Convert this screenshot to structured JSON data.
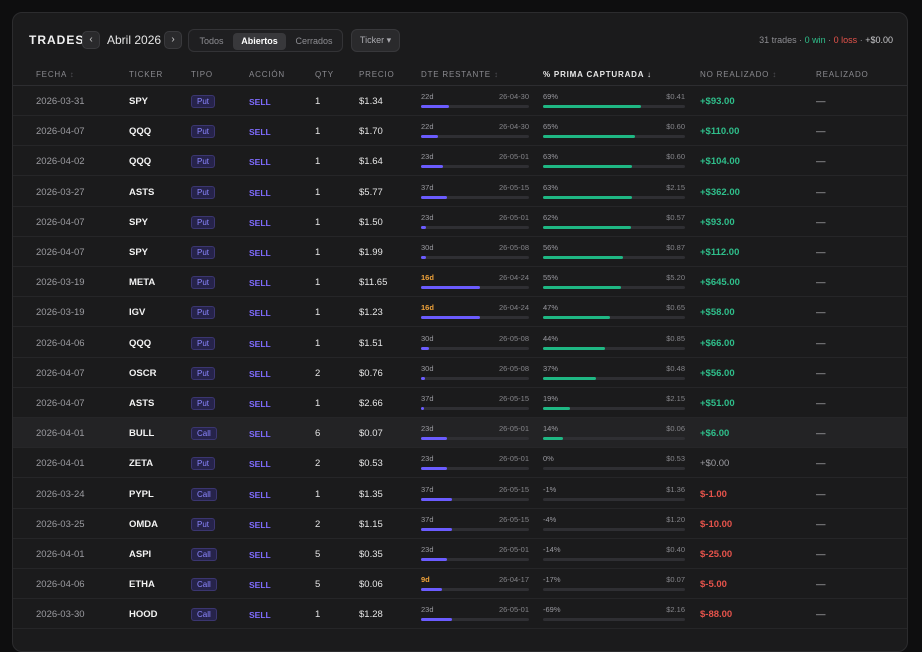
{
  "toolbar": {
    "title": "TRADES",
    "prev_icon": "chevron-left",
    "next_icon": "chevron-right",
    "month": "Abril 2026",
    "filters": [
      "Todos",
      "Abiertos",
      "Cerrados"
    ],
    "active_filter": "Abiertos",
    "ticker_filter": "Ticker ▾",
    "summary": {
      "count": "31 trades",
      "win": "0 win",
      "loss": "0 loss",
      "net": "+$0.00",
      "sep": "·"
    }
  },
  "columns": {
    "fecha": "FECHA",
    "ticker": "TICKER",
    "tipo": "TIPO",
    "accion": "ACCIÓN",
    "qty": "QTY",
    "precio": "PRECIO",
    "dte": "DTE RESTANTE",
    "prima": "% PRIMA CAPTURADA ↓",
    "no_realizado": "NO REALIZADO",
    "realizado": "REALIZADO",
    "sort_caret": "↕"
  },
  "colors": {
    "accent": "#6b5cff",
    "positive": "#2fbf8b",
    "negative": "#e5534b",
    "warning": "#f0a33a"
  },
  "rows": [
    {
      "fecha": "2026-03-31",
      "ticker": "SPY",
      "tipo": "Put",
      "accion": "SELL",
      "qty": "1",
      "precio": "$1.34",
      "dte": "22d",
      "dte_fill": 0.26,
      "expiry": "26-04-30",
      "pct": "69%",
      "pct_value": 0.69,
      "prima": "$0.41",
      "no_realizado": "+$93.00",
      "realizado": "—",
      "state": "pos"
    },
    {
      "fecha": "2026-04-07",
      "ticker": "QQQ",
      "tipo": "Put",
      "accion": "SELL",
      "qty": "1",
      "precio": "$1.70",
      "dte": "22d",
      "dte_fill": 0.16,
      "expiry": "26-04-30",
      "pct": "65%",
      "pct_value": 0.65,
      "prima": "$0.60",
      "no_realizado": "+$110.00",
      "realizado": "—",
      "state": "pos"
    },
    {
      "fecha": "2026-04-02",
      "ticker": "QQQ",
      "tipo": "Put",
      "accion": "SELL",
      "qty": "1",
      "precio": "$1.64",
      "dte": "23d",
      "dte_fill": 0.2,
      "expiry": "26-05-01",
      "pct": "63%",
      "pct_value": 0.63,
      "prima": "$0.60",
      "no_realizado": "+$104.00",
      "realizado": "—",
      "state": "pos"
    },
    {
      "fecha": "2026-03-27",
      "ticker": "ASTS",
      "tipo": "Put",
      "accion": "SELL",
      "qty": "1",
      "precio": "$5.77",
      "dte": "37d",
      "dte_fill": 0.24,
      "expiry": "26-05-15",
      "pct": "63%",
      "pct_value": 0.63,
      "prima": "$2.15",
      "no_realizado": "+$362.00",
      "realizado": "—",
      "state": "pos"
    },
    {
      "fecha": "2026-04-07",
      "ticker": "SPY",
      "tipo": "Put",
      "accion": "SELL",
      "qty": "1",
      "precio": "$1.50",
      "dte": "23d",
      "dte_fill": 0.05,
      "expiry": "26-05-01",
      "pct": "62%",
      "pct_value": 0.62,
      "prima": "$0.57",
      "no_realizado": "+$93.00",
      "realizado": "—",
      "state": "pos"
    },
    {
      "fecha": "2026-04-07",
      "ticker": "SPY",
      "tipo": "Put",
      "accion": "SELL",
      "qty": "1",
      "precio": "$1.99",
      "dte": "30d",
      "dte_fill": 0.05,
      "expiry": "26-05-08",
      "pct": "56%",
      "pct_value": 0.56,
      "prima": "$0.87",
      "no_realizado": "+$112.00",
      "realizado": "—",
      "state": "pos"
    },
    {
      "fecha": "2026-03-19",
      "ticker": "META",
      "tipo": "Put",
      "accion": "SELL",
      "qty": "1",
      "precio": "$11.65",
      "dte": "16d",
      "dte_fill": 0.55,
      "expiry": "26-04-24",
      "pct": "55%",
      "pct_value": 0.55,
      "prima": "$5.20",
      "no_realizado": "+$645.00",
      "realizado": "—",
      "state": "pos",
      "dte_warn": true
    },
    {
      "fecha": "2026-03-19",
      "ticker": "IGV",
      "tipo": "Put",
      "accion": "SELL",
      "qty": "1",
      "precio": "$1.23",
      "dte": "16d",
      "dte_fill": 0.55,
      "expiry": "26-04-24",
      "pct": "47%",
      "pct_value": 0.47,
      "prima": "$0.65",
      "no_realizado": "+$58.00",
      "realizado": "—",
      "state": "pos",
      "dte_warn": true
    },
    {
      "fecha": "2026-04-06",
      "ticker": "QQQ",
      "tipo": "Put",
      "accion": "SELL",
      "qty": "1",
      "precio": "$1.51",
      "dte": "30d",
      "dte_fill": 0.07,
      "expiry": "26-05-08",
      "pct": "44%",
      "pct_value": 0.44,
      "prima": "$0.85",
      "no_realizado": "+$66.00",
      "realizado": "—",
      "state": "pos"
    },
    {
      "fecha": "2026-04-07",
      "ticker": "OSCR",
      "tipo": "Put",
      "accion": "SELL",
      "qty": "2",
      "precio": "$0.76",
      "dte": "30d",
      "dte_fill": 0.04,
      "expiry": "26-05-08",
      "pct": "37%",
      "pct_value": 0.37,
      "prima": "$0.48",
      "no_realizado": "+$56.00",
      "realizado": "—",
      "state": "pos"
    },
    {
      "fecha": "2026-04-07",
      "ticker": "ASTS",
      "tipo": "Put",
      "accion": "SELL",
      "qty": "1",
      "precio": "$2.66",
      "dte": "37d",
      "dte_fill": 0.03,
      "expiry": "26-05-15",
      "pct": "19%",
      "pct_value": 0.19,
      "prima": "$2.15",
      "no_realizado": "+$51.00",
      "realizado": "—",
      "state": "pos"
    },
    {
      "fecha": "2026-04-01",
      "ticker": "BULL",
      "tipo": "Call",
      "accion": "SELL",
      "qty": "6",
      "precio": "$0.07",
      "dte": "23d",
      "dte_fill": 0.24,
      "expiry": "26-05-01",
      "pct": "14%",
      "pct_value": 0.14,
      "prima": "$0.06",
      "no_realizado": "+$6.00",
      "realizado": "—",
      "state": "pos",
      "highlight": true
    },
    {
      "fecha": "2026-04-01",
      "ticker": "ZETA",
      "tipo": "Put",
      "accion": "SELL",
      "qty": "2",
      "precio": "$0.53",
      "dte": "23d",
      "dte_fill": 0.24,
      "expiry": "26-05-01",
      "pct": "0%",
      "pct_value": 0,
      "prima": "$0.53",
      "no_realizado": "+$0.00",
      "realizado": "—",
      "state": "zero"
    },
    {
      "fecha": "2026-03-24",
      "ticker": "PYPL",
      "tipo": "Call",
      "accion": "SELL",
      "qty": "1",
      "precio": "$1.35",
      "dte": "37d",
      "dte_fill": 0.29,
      "expiry": "26-05-15",
      "pct": "-1%",
      "pct_value": 0,
      "prima": "$1.36",
      "no_realizado": "$-1.00",
      "realizado": "—",
      "state": "neg"
    },
    {
      "fecha": "2026-03-25",
      "ticker": "OMDA",
      "tipo": "Put",
      "accion": "SELL",
      "qty": "2",
      "precio": "$1.15",
      "dte": "37d",
      "dte_fill": 0.29,
      "expiry": "26-05-15",
      "pct": "-4%",
      "pct_value": 0,
      "prima": "$1.20",
      "no_realizado": "$-10.00",
      "realizado": "—",
      "state": "neg"
    },
    {
      "fecha": "2026-04-01",
      "ticker": "ASPI",
      "tipo": "Call",
      "accion": "SELL",
      "qty": "5",
      "precio": "$0.35",
      "dte": "23d",
      "dte_fill": 0.24,
      "expiry": "26-05-01",
      "pct": "-14%",
      "pct_value": 0,
      "prima": "$0.40",
      "no_realizado": "$-25.00",
      "realizado": "—",
      "state": "neg"
    },
    {
      "fecha": "2026-04-06",
      "ticker": "ETHA",
      "tipo": "Call",
      "accion": "SELL",
      "qty": "5",
      "precio": "$0.06",
      "dte": "9d",
      "dte_fill": 0.19,
      "expiry": "26-04-17",
      "pct": "-17%",
      "pct_value": 0,
      "prima": "$0.07",
      "no_realizado": "$-5.00",
      "realizado": "—",
      "state": "neg",
      "dte_warn": true
    },
    {
      "fecha": "2026-03-30",
      "ticker": "HOOD",
      "tipo": "Call",
      "accion": "SELL",
      "qty": "1",
      "precio": "$1.28",
      "dte": "23d",
      "dte_fill": 0.29,
      "expiry": "26-05-01",
      "pct": "-69%",
      "pct_value": 0,
      "prima": "$2.16",
      "no_realizado": "$-88.00",
      "realizado": "—",
      "state": "neg"
    }
  ]
}
